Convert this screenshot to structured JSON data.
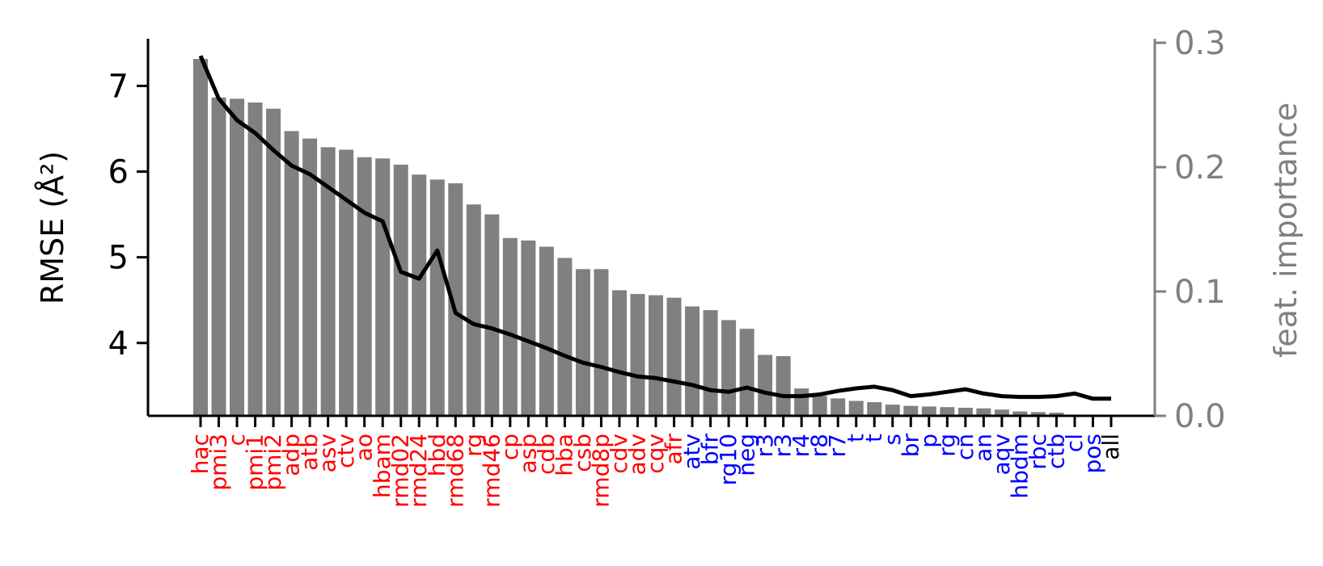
{
  "chart_data": {
    "type": "bar",
    "categories": [
      "hac",
      "pmi3",
      "c",
      "pmi1",
      "pmi2",
      "adp",
      "atb",
      "asv",
      "ctv",
      "ao",
      "hbam",
      "rmd02",
      "rmd24",
      "hbd",
      "rmd68",
      "rg",
      "rmd46",
      "cp",
      "asp",
      "cdb",
      "hba",
      "csb",
      "rmd8p",
      "cdv",
      "adv",
      "cqv",
      "afr",
      "atv",
      "bfr",
      "rg10",
      "neg",
      "r3",
      "r3",
      "r4",
      "r8",
      "r7",
      "t",
      "t",
      "s",
      "br",
      "p",
      "rg",
      "cn",
      "an",
      "aqv",
      "hbdm",
      "rbc",
      "ctb",
      "cl",
      "pos",
      "all"
    ],
    "category_colors": [
      "#ff0000",
      "#ff0000",
      "#ff0000",
      "#ff0000",
      "#ff0000",
      "#ff0000",
      "#ff0000",
      "#ff0000",
      "#ff0000",
      "#ff0000",
      "#ff0000",
      "#ff0000",
      "#ff0000",
      "#ff0000",
      "#ff0000",
      "#ff0000",
      "#ff0000",
      "#ff0000",
      "#ff0000",
      "#ff0000",
      "#ff0000",
      "#ff0000",
      "#ff0000",
      "#ff0000",
      "#ff0000",
      "#ff0000",
      "#ff0000",
      "#0000ff",
      "#0000ff",
      "#0000ff",
      "#0000ff",
      "#0000ff",
      "#0000ff",
      "#0000ff",
      "#0000ff",
      "#0000ff",
      "#0000ff",
      "#0000ff",
      "#0000ff",
      "#0000ff",
      "#0000ff",
      "#0000ff",
      "#0000ff",
      "#0000ff",
      "#0000ff",
      "#0000ff",
      "#0000ff",
      "#0000ff",
      "#0000ff",
      "#0000ff",
      "#000000"
    ],
    "series": [
      {
        "type": "bar",
        "axis": "right",
        "color": "#808080",
        "values": [
          0.287,
          0.256,
          0.255,
          0.252,
          0.247,
          0.229,
          0.223,
          0.216,
          0.214,
          0.208,
          0.207,
          0.202,
          0.194,
          0.19,
          0.187,
          0.17,
          0.162,
          0.143,
          0.141,
          0.136,
          0.127,
          0.118,
          0.118,
          0.101,
          0.098,
          0.097,
          0.095,
          0.088,
          0.085,
          0.077,
          0.07,
          0.049,
          0.048,
          0.022,
          0.016,
          0.014,
          0.012,
          0.011,
          0.009,
          0.008,
          0.0075,
          0.007,
          0.0065,
          0.006,
          0.005,
          0.0035,
          0.003,
          0.0025,
          0.001,
          0.001,
          0.0
        ]
      },
      {
        "type": "line",
        "axis": "left",
        "color": "#000000",
        "values": [
          7.35,
          6.85,
          6.6,
          6.45,
          6.25,
          6.07,
          5.97,
          5.82,
          5.67,
          5.52,
          5.42,
          4.83,
          4.75,
          5.08,
          4.35,
          4.22,
          4.17,
          4.1,
          4.02,
          3.94,
          3.85,
          3.77,
          3.72,
          3.66,
          3.61,
          3.59,
          3.55,
          3.51,
          3.45,
          3.43,
          3.48,
          3.42,
          3.38,
          3.38,
          3.4,
          3.44,
          3.47,
          3.49,
          3.45,
          3.38,
          3.4,
          3.43,
          3.46,
          3.41,
          3.38,
          3.37,
          3.37,
          3.38,
          3.41,
          3.35,
          3.35
        ]
      }
    ],
    "axes": {
      "left": {
        "label": "RMSE (Å²)",
        "ylim": [
          3.15,
          7.55
        ],
        "ticks": [
          4,
          5,
          6,
          7
        ],
        "tick_labels": [
          "4",
          "5",
          "6",
          "7"
        ]
      },
      "right": {
        "label": "feat. importance",
        "ylim": [
          0.0,
          0.3
        ],
        "ticks": [
          0.0,
          0.1,
          0.2,
          0.3
        ],
        "tick_labels": [
          "0.0",
          "0.1",
          "0.2",
          "0.3"
        ],
        "color": "#808080"
      }
    },
    "title": "",
    "xlabel": "",
    "grid": false
  }
}
